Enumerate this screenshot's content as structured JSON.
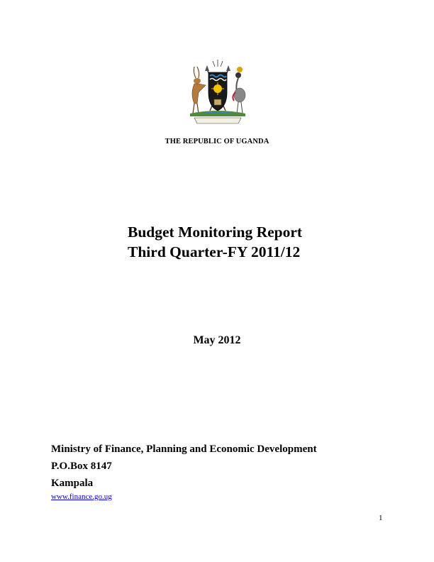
{
  "header": {
    "emblem_icon": "uganda-coat-of-arms-icon",
    "emblem_motto": "FOR GOD AND MY COUNTRY",
    "country": "THE REPUBLIC OF UGANDA"
  },
  "title": {
    "line1": "Budget Monitoring Report",
    "line2": "Third Quarter-FY 2011/12"
  },
  "date": "May 2012",
  "publisher": {
    "ministry": "Ministry of Finance, Planning and Economic Development",
    "po_box": "P.O.Box 8147",
    "city": "Kampala",
    "website": "www.finance.go.ug"
  },
  "footer": {
    "page_number": "1"
  },
  "colors": {
    "link": "#0000ee",
    "text": "#000000"
  }
}
